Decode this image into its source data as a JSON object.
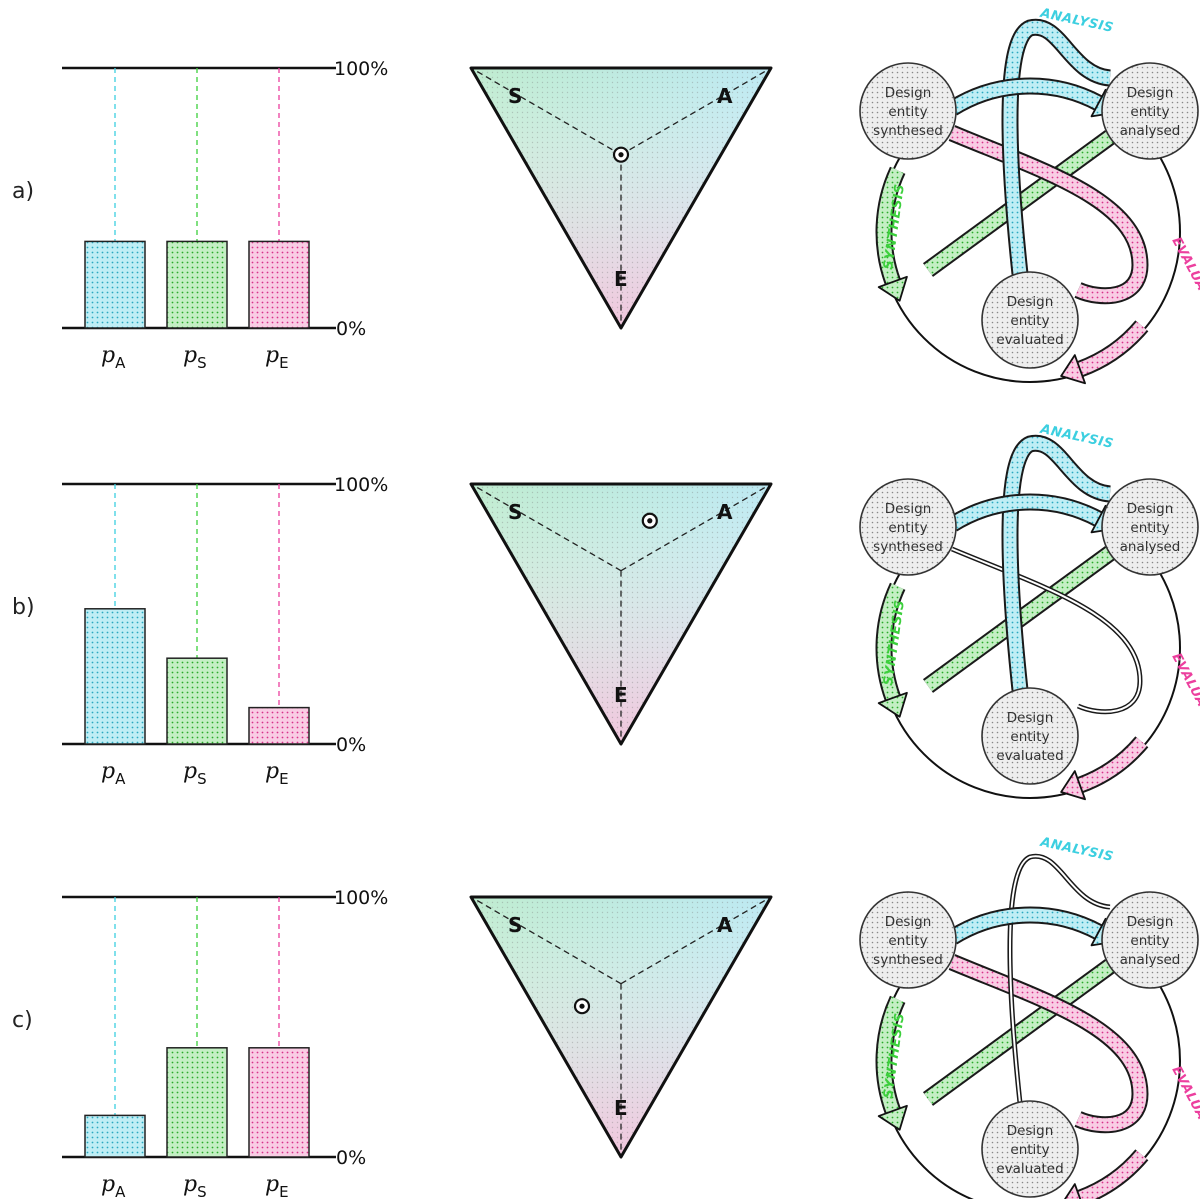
{
  "axis": {
    "top_label": "100%",
    "bottom_label": "0%"
  },
  "bar_labels": [
    {
      "main": "p",
      "sub": "A"
    },
    {
      "main": "p",
      "sub": "S"
    },
    {
      "main": "p",
      "sub": "E"
    }
  ],
  "vertex_labels": {
    "S": "S",
    "A": "A",
    "E": "E"
  },
  "node_labels": {
    "synthesised": [
      "Design",
      "entity",
      "synthesed"
    ],
    "analysed": [
      "Design",
      "entity",
      "analysed"
    ],
    "evaluated": [
      "Design",
      "entity",
      "evaluated"
    ]
  },
  "flow_labels": {
    "analysis": "ANALYSIS",
    "synthesis": "SYNTHESIS",
    "evaluation": "EVALUATION"
  },
  "colors": {
    "analysis": "#3ccfe0",
    "synthesis": "#3ccf3c",
    "evaluation": "#ec3f9e",
    "ink": "#111111"
  },
  "rows": [
    {
      "label": "a)",
      "shares": {
        "A": 0.333,
        "S": 0.333,
        "E": 0.333
      },
      "flow_active": {
        "analysis": true,
        "synthesis": true,
        "evaluation": true
      }
    },
    {
      "label": "b)",
      "shares": {
        "A": 0.52,
        "S": 0.33,
        "E": 0.14
      },
      "flow_active": {
        "analysis": true,
        "synthesis": true,
        "evaluation": false
      }
    },
    {
      "label": "c)",
      "shares": {
        "A": 0.16,
        "S": 0.42,
        "E": 0.42
      },
      "flow_active": {
        "analysis": false,
        "synthesis": true,
        "evaluation": true
      }
    }
  ]
}
